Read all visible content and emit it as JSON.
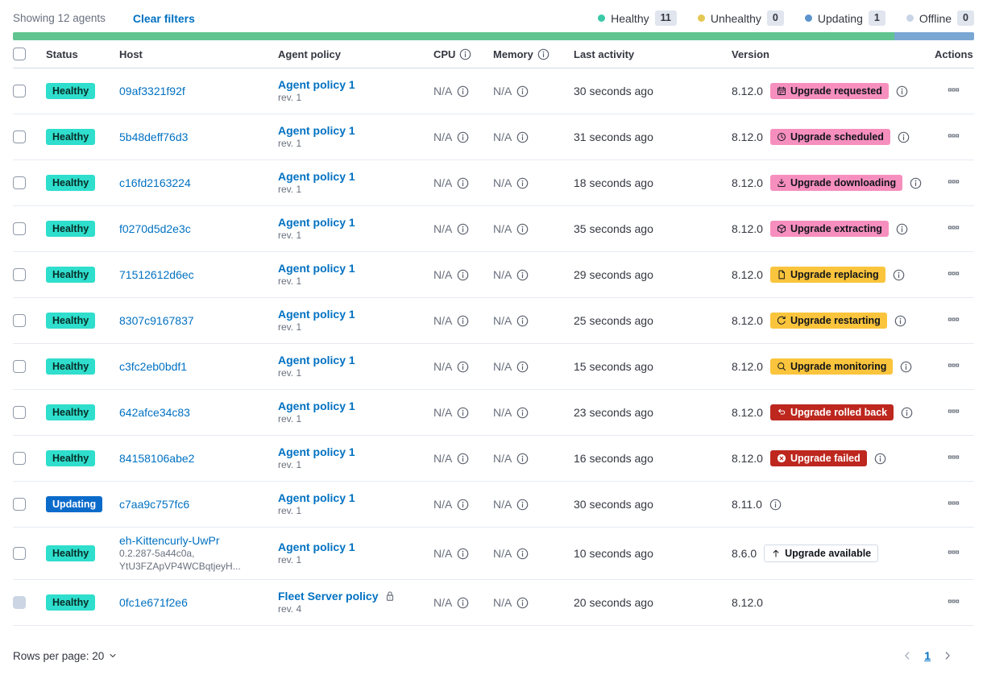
{
  "toolbar": {
    "showing": "Showing 12 agents",
    "clear_filters": "Clear filters"
  },
  "legend": {
    "items": [
      {
        "label": "Healthy",
        "count": "11",
        "color": "#3BC9A7"
      },
      {
        "label": "Unhealthy",
        "count": "0",
        "color": "#E5C854"
      },
      {
        "label": "Updating",
        "count": "1",
        "color": "#5B94CC"
      },
      {
        "label": "Offline",
        "count": "0",
        "color": "#C9D4E6"
      }
    ]
  },
  "status_bar": {
    "segments": [
      {
        "name": "healthy",
        "color": "#60C491",
        "fraction": 0.9167
      },
      {
        "name": "updating",
        "color": "#7AA6D3",
        "fraction": 0.0833
      }
    ]
  },
  "table": {
    "columns": [
      "Status",
      "Host",
      "Agent policy",
      "CPU",
      "Memory",
      "Last activity",
      "Version",
      "Actions"
    ]
  },
  "rows": [
    {
      "status": {
        "label": "Healthy",
        "type": "healthy"
      },
      "host": {
        "name": "09af3321f92f"
      },
      "policy": {
        "name": "Agent policy 1",
        "rev": "rev. 1",
        "locked": false
      },
      "cpu": "N/A",
      "memory": "N/A",
      "last_activity": "30 seconds ago",
      "version": "8.12.0",
      "upgrade": {
        "label": "Upgrade requested",
        "type": "accent",
        "icon": "calendar-icon"
      },
      "info_icon": true,
      "checkbox_disabled": false
    },
    {
      "status": {
        "label": "Healthy",
        "type": "healthy"
      },
      "host": {
        "name": "5b48deff76d3"
      },
      "policy": {
        "name": "Agent policy 1",
        "rev": "rev. 1",
        "locked": false
      },
      "cpu": "N/A",
      "memory": "N/A",
      "last_activity": "31 seconds ago",
      "version": "8.12.0",
      "upgrade": {
        "label": "Upgrade scheduled",
        "type": "accent",
        "icon": "clock-icon"
      },
      "info_icon": true,
      "checkbox_disabled": false
    },
    {
      "status": {
        "label": "Healthy",
        "type": "healthy"
      },
      "host": {
        "name": "c16fd2163224"
      },
      "policy": {
        "name": "Agent policy 1",
        "rev": "rev. 1",
        "locked": false
      },
      "cpu": "N/A",
      "memory": "N/A",
      "last_activity": "18 seconds ago",
      "version": "8.12.0",
      "upgrade": {
        "label": "Upgrade downloading",
        "type": "accent",
        "icon": "download-icon"
      },
      "info_icon": true,
      "checkbox_disabled": false
    },
    {
      "status": {
        "label": "Healthy",
        "type": "healthy"
      },
      "host": {
        "name": "f0270d5d2e3c"
      },
      "policy": {
        "name": "Agent policy 1",
        "rev": "rev. 1",
        "locked": false
      },
      "cpu": "N/A",
      "memory": "N/A",
      "last_activity": "35 seconds ago",
      "version": "8.12.0",
      "upgrade": {
        "label": "Upgrade extracting",
        "type": "accent",
        "icon": "package-icon"
      },
      "info_icon": true,
      "checkbox_disabled": false
    },
    {
      "status": {
        "label": "Healthy",
        "type": "healthy"
      },
      "host": {
        "name": "71512612d6ec"
      },
      "policy": {
        "name": "Agent policy 1",
        "rev": "rev. 1",
        "locked": false
      },
      "cpu": "N/A",
      "memory": "N/A",
      "last_activity": "29 seconds ago",
      "version": "8.12.0",
      "upgrade": {
        "label": "Upgrade replacing",
        "type": "warning",
        "icon": "document-icon"
      },
      "info_icon": true,
      "checkbox_disabled": false
    },
    {
      "status": {
        "label": "Healthy",
        "type": "healthy"
      },
      "host": {
        "name": "8307c9167837"
      },
      "policy": {
        "name": "Agent policy 1",
        "rev": "rev. 1",
        "locked": false
      },
      "cpu": "N/A",
      "memory": "N/A",
      "last_activity": "25 seconds ago",
      "version": "8.12.0",
      "upgrade": {
        "label": "Upgrade restarting",
        "type": "warning",
        "icon": "refresh-icon"
      },
      "info_icon": true,
      "checkbox_disabled": false
    },
    {
      "status": {
        "label": "Healthy",
        "type": "healthy"
      },
      "host": {
        "name": "c3fc2eb0bdf1"
      },
      "policy": {
        "name": "Agent policy 1",
        "rev": "rev. 1",
        "locked": false
      },
      "cpu": "N/A",
      "memory": "N/A",
      "last_activity": "15 seconds ago",
      "version": "8.12.0",
      "upgrade": {
        "label": "Upgrade monitoring",
        "type": "warning",
        "icon": "inspect-icon"
      },
      "info_icon": true,
      "checkbox_disabled": false
    },
    {
      "status": {
        "label": "Healthy",
        "type": "healthy"
      },
      "host": {
        "name": "642afce34c83"
      },
      "policy": {
        "name": "Agent policy 1",
        "rev": "rev. 1",
        "locked": false
      },
      "cpu": "N/A",
      "memory": "N/A",
      "last_activity": "23 seconds ago",
      "version": "8.12.0",
      "upgrade": {
        "label": "Upgrade rolled back",
        "type": "danger",
        "icon": "return-icon"
      },
      "info_icon": true,
      "checkbox_disabled": false
    },
    {
      "status": {
        "label": "Healthy",
        "type": "healthy"
      },
      "host": {
        "name": "84158106abe2"
      },
      "policy": {
        "name": "Agent policy 1",
        "rev": "rev. 1",
        "locked": false
      },
      "cpu": "N/A",
      "memory": "N/A",
      "last_activity": "16 seconds ago",
      "version": "8.12.0",
      "upgrade": {
        "label": "Upgrade failed",
        "type": "danger",
        "icon": "error-icon"
      },
      "info_icon": true,
      "checkbox_disabled": false
    },
    {
      "status": {
        "label": "Updating",
        "type": "updating"
      },
      "host": {
        "name": "c7aa9c757fc6"
      },
      "policy": {
        "name": "Agent policy 1",
        "rev": "rev. 1",
        "locked": false
      },
      "cpu": "N/A",
      "memory": "N/A",
      "last_activity": "30 seconds ago",
      "version": "8.11.0",
      "upgrade": null,
      "info_icon": true,
      "checkbox_disabled": false
    },
    {
      "status": {
        "label": "Healthy",
        "type": "healthy"
      },
      "host": {
        "name": "eh-Kittencurly-UwPr",
        "sub": [
          "0.2.287-5a44c0a,",
          "YtU3FZApVP4WCBqtjeyH..."
        ]
      },
      "policy": {
        "name": "Agent policy 1",
        "rev": "rev. 1",
        "locked": false
      },
      "cpu": "N/A",
      "memory": "N/A",
      "last_activity": "10 seconds ago",
      "version": "8.6.0",
      "upgrade": {
        "label": "Upgrade available",
        "type": "hollow",
        "icon": "arrow-up-icon"
      },
      "info_icon": false,
      "checkbox_disabled": false
    },
    {
      "status": {
        "label": "Healthy",
        "type": "healthy"
      },
      "host": {
        "name": "0fc1e671f2e6"
      },
      "policy": {
        "name": "Fleet Server policy",
        "rev": "rev. 4",
        "locked": true
      },
      "cpu": "N/A",
      "memory": "N/A",
      "last_activity": "20 seconds ago",
      "version": "8.12.0",
      "upgrade": null,
      "info_icon": false,
      "checkbox_disabled": true
    }
  ],
  "footer": {
    "rows_per_page": "Rows per page: 20",
    "page": "1"
  },
  "colors": {
    "link": "#0071C2",
    "badge_accent": "#F68FBE",
    "badge_warning": "#FAC43C",
    "badge_danger": "#BD271E",
    "badge_hollow_border": "#D3DAE6",
    "status_healthy": "#2FDECC",
    "status_updating": "#0B6BCB"
  }
}
